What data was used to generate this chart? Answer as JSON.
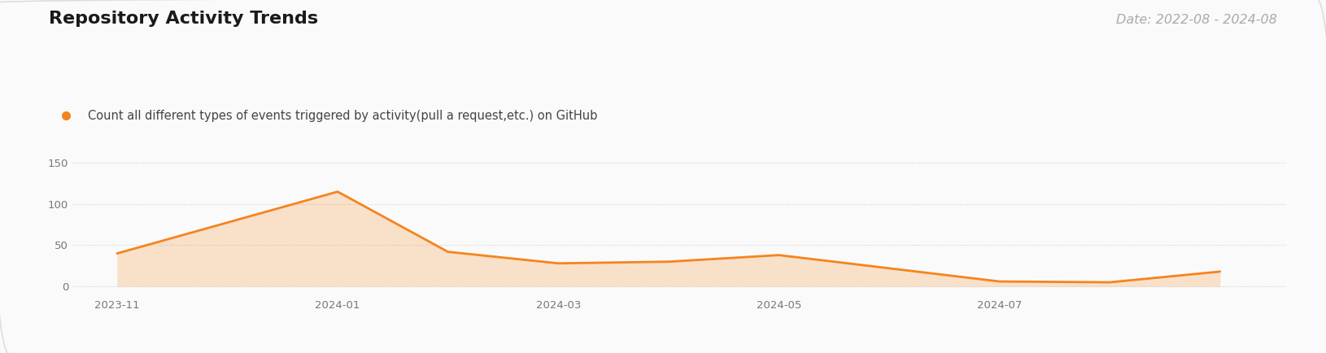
{
  "title": "Repository Activity Trends",
  "date_range": "Date: 2022-08 - 2024-08",
  "legend_label": "Count all different types of events triggered by activity(pull a request,etc.) on GitHub",
  "x_labels": [
    "2023-11",
    "2024-01",
    "2024-03",
    "2024-05",
    "2024-07"
  ],
  "x_tick_positions": [
    0,
    2,
    4,
    6,
    8
  ],
  "data_x": [
    0,
    2,
    3,
    4,
    5,
    6,
    8,
    9,
    10
  ],
  "data_y": [
    40,
    115,
    42,
    28,
    30,
    38,
    6,
    5,
    18
  ],
  "line_color": "#F5841E",
  "fill_color": "#F5841E",
  "fill_alpha": 0.22,
  "background_color": "#FAFAFA",
  "border_color": "#DDDDDD",
  "grid_color": "#CCCCCC",
  "title_color": "#1a1a1a",
  "legend_color": "#444444",
  "date_color": "#AAAAAA",
  "yticks": [
    0,
    50,
    100,
    150
  ],
  "ylim": [
    -8,
    172
  ],
  "xlim": [
    -0.4,
    10.6
  ],
  "title_fontsize": 16,
  "legend_fontsize": 10.5,
  "date_fontsize": 11.5,
  "axis_fontsize": 9.5
}
